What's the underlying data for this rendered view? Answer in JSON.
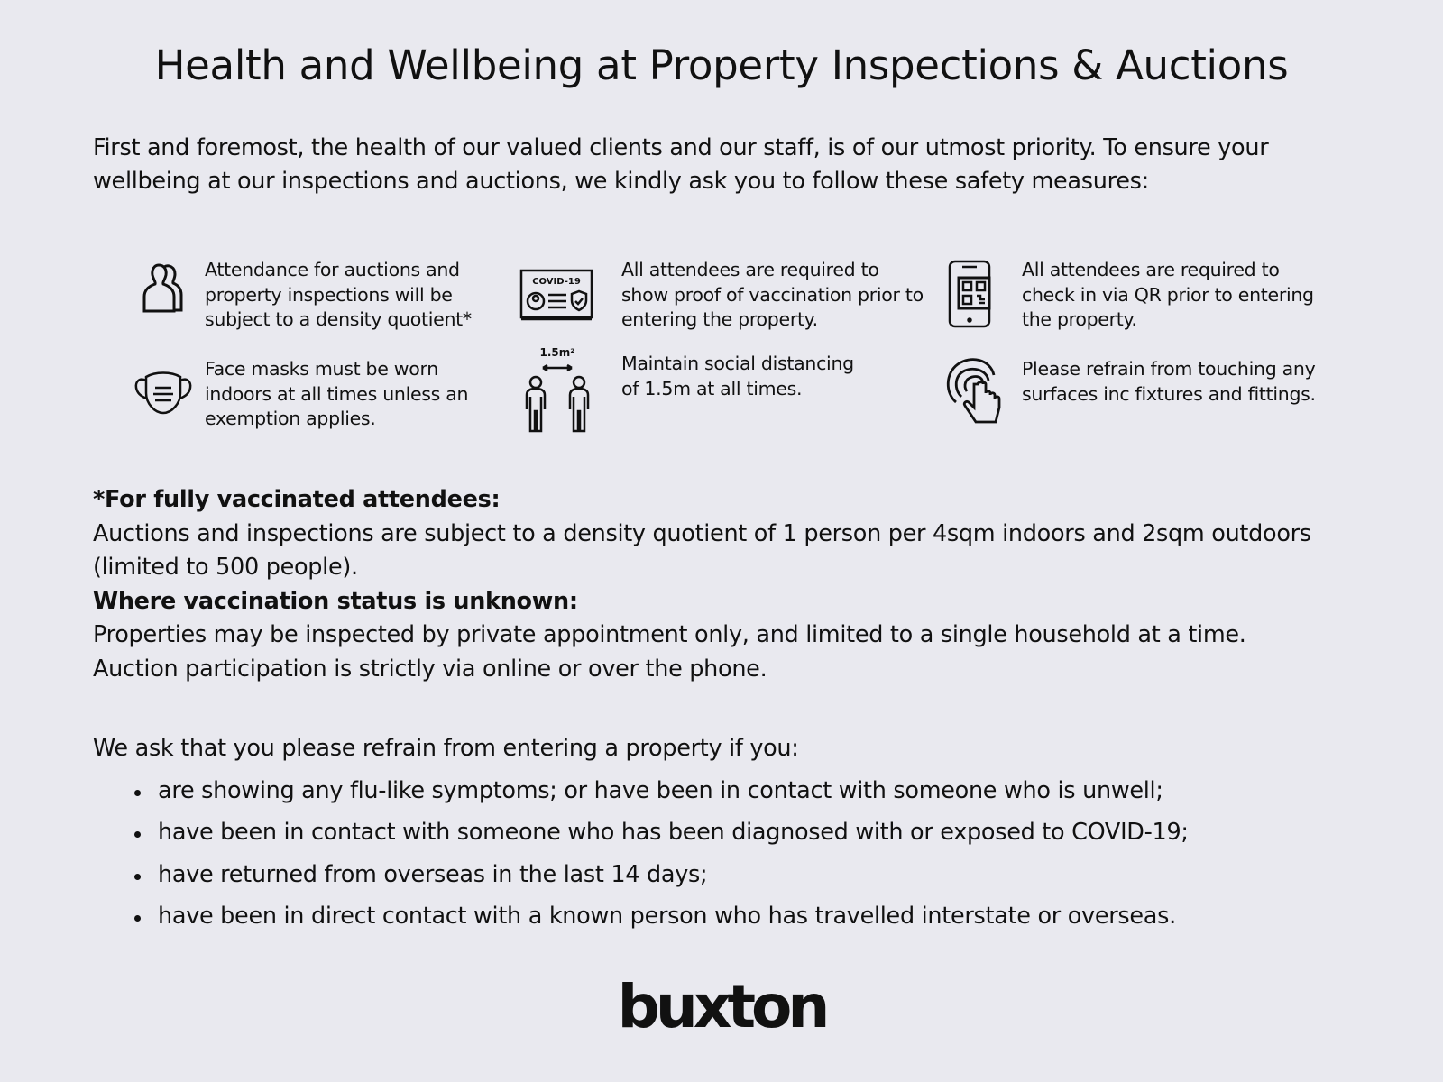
{
  "title": "Health and Wellbeing at Property Inspections & Auctions",
  "intro": "First and foremost, the health of our valued clients and our staff, is of our utmost priority. To ensure your wellbeing at our inspections and auctions, we kindly ask you to follow these safety measures:",
  "measures": [
    {
      "icon": "people-icon",
      "text": "Attendance for auctions and property inspections will be subject to a density quotient*"
    },
    {
      "icon": "covid-certificate-icon",
      "icon_label": "COVID-19",
      "text": "All attendees are required to show proof of vaccination prior to entering the property."
    },
    {
      "icon": "phone-qr-icon",
      "text": "All attendees are required to check in via QR prior to entering the property."
    },
    {
      "icon": "face-mask-icon",
      "text": "Face masks must be worn indoors at all times unless an exemption applies."
    },
    {
      "icon": "social-distance-icon",
      "icon_label": "1.5m²",
      "text": "Maintain social distancing of 1.5m at all times."
    },
    {
      "icon": "touch-icon",
      "text": "Please refrain from touching any surfaces inc fixtures and fittings."
    }
  ],
  "notes": {
    "vaccinated_heading": "*For fully vaccinated attendees:",
    "vaccinated_text": "Auctions and inspections are subject to a density quotient of 1 person per 4sqm indoors and 2sqm outdoors (limited to 500 people).",
    "unknown_heading": "Where vaccination status is unknown:",
    "unknown_text_1": "Properties may be inspected by private appointment only, and limited to a single household at a time.",
    "unknown_text_2": "Auction participation is strictly via online or over the phone."
  },
  "ask": "We ask that you please refrain from entering a property if you:",
  "bullets": [
    "are showing any flu-like symptoms; or have been in contact with someone who is unwell;",
    "have been in contact with someone who has been diagnosed with or exposed to COVID-19;",
    "have returned from overseas in the last 14 days;",
    "have been in direct contact with a known person who has travelled interstate or overseas."
  ],
  "logo": "buxton"
}
